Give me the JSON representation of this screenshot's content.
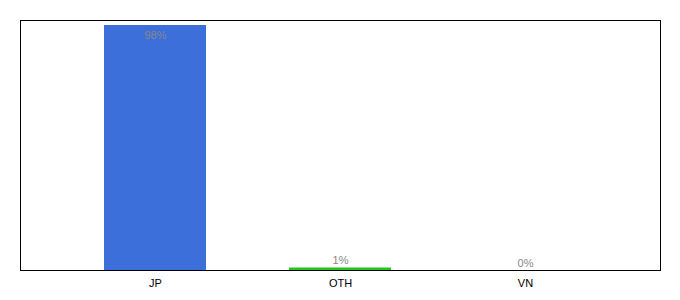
{
  "chart_data": {
    "type": "bar",
    "categories": [
      "JP",
      "OTH",
      "VN"
    ],
    "values": [
      98,
      1,
      0
    ],
    "colors": [
      "#3d6fdb",
      "#22c422",
      "#3d6fdb"
    ],
    "data_labels": true,
    "value_labels": [
      "98%",
      "1%",
      "0%"
    ],
    "ylim": [
      0,
      100
    ],
    "yticks": [],
    "grid": false,
    "tick_labels": "x"
  }
}
